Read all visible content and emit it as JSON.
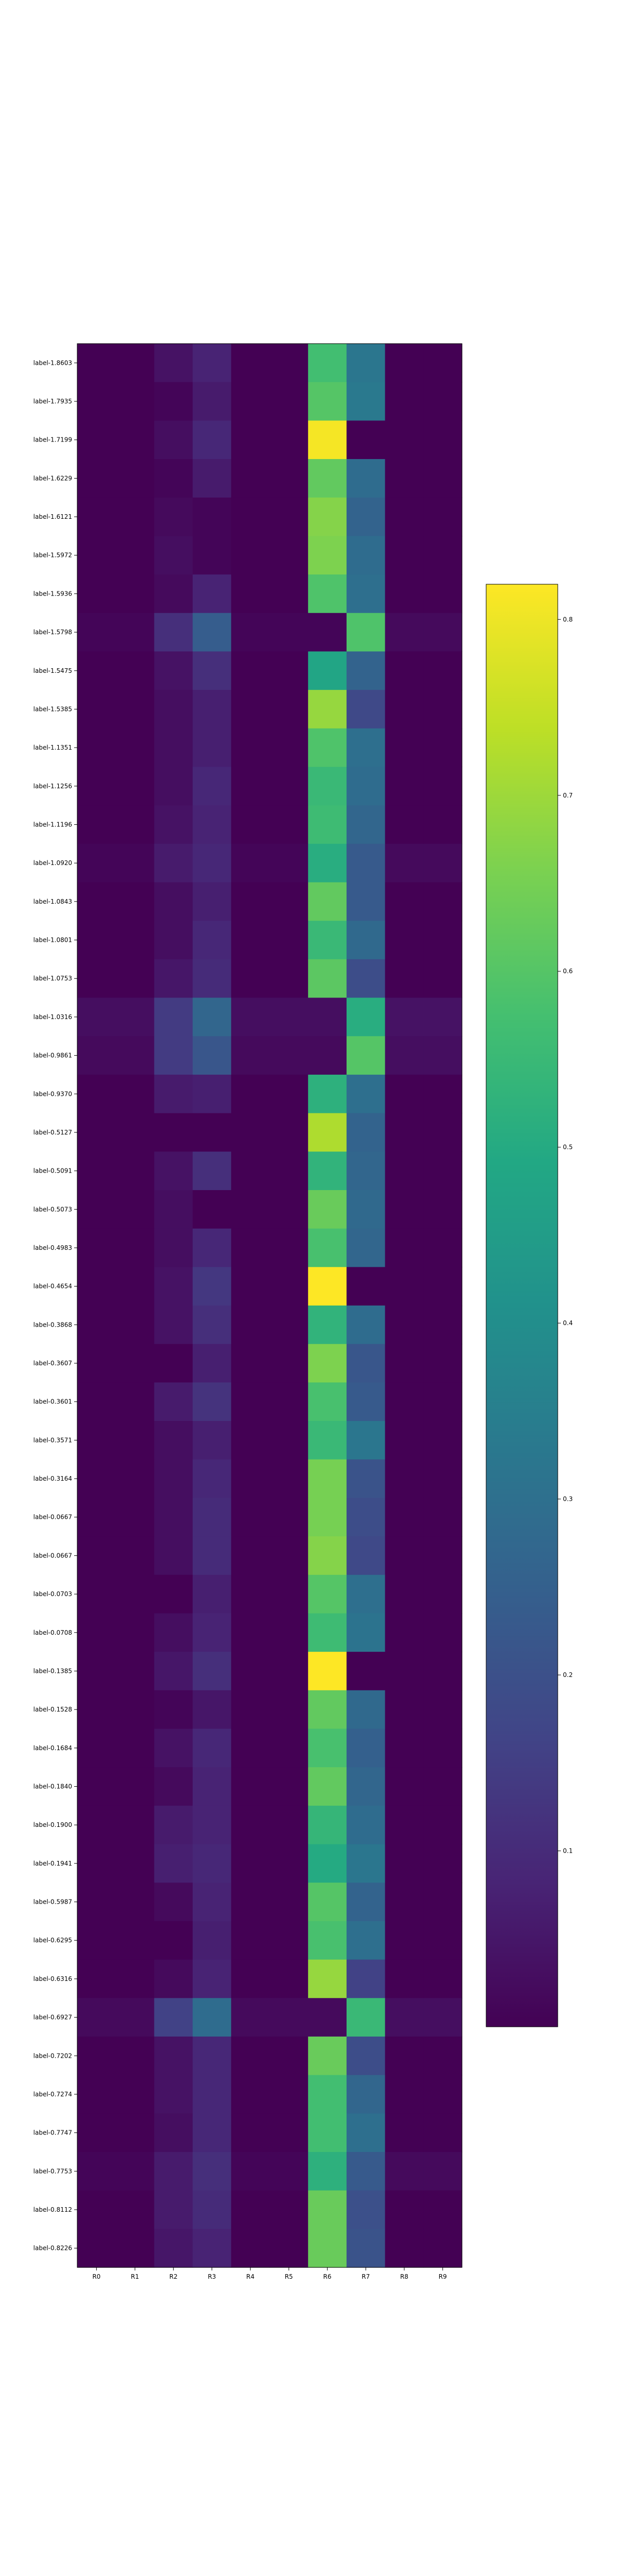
{
  "chart_data": {
    "type": "heatmap",
    "title": "",
    "xlabel": "",
    "ylabel": "",
    "colormap": "viridis",
    "x": [
      "R0",
      "R1",
      "R2",
      "R3",
      "R4",
      "R5",
      "R6",
      "R7",
      "R8",
      "R9"
    ],
    "y": [
      "label-1.8603",
      "label-1.7935",
      "label-1.7199",
      "label-1.6229",
      "label-1.6121",
      "label-1.5972",
      "label-1.5936",
      "label-1.5798",
      "label-1.5475",
      "label-1.5385",
      "label-1.1351",
      "label-1.1256",
      "label-1.1196",
      "label-1.0920",
      "label-1.0843",
      "label-1.0801",
      "label-1.0753",
      "label-1.0316",
      "label-0.9861",
      "label-0.9370",
      "label-0.5127",
      "label-0.5091",
      "label-0.5073",
      "label-0.4983",
      "label-0.4654",
      "label-0.3868",
      "label-0.3607",
      "label-0.3601",
      "label-0.3571",
      "label-0.3164",
      "label-0.0667",
      "label-0.0667",
      "label-0.0703",
      "label-0.0708",
      "label-0.1385",
      "label-0.1528",
      "label-0.1684",
      "label-0.1840",
      "label-0.1900",
      "label-0.1941",
      "label-0.5987",
      "label-0.6295",
      "label-0.6316",
      "label-0.6927",
      "label-0.7202",
      "label-0.7274",
      "label-0.7747",
      "label-0.7753",
      "label-0.8112",
      "label-0.8226"
    ],
    "values": [
      [
        0.0,
        0.0,
        0.04,
        0.08,
        0.0,
        0.0,
        0.57,
        0.32,
        0.0,
        0.0
      ],
      [
        0.0,
        0.0,
        0.01,
        0.06,
        0.0,
        0.0,
        0.6,
        0.33,
        0.0,
        0.0
      ],
      [
        0.0,
        0.0,
        0.03,
        0.09,
        0.0,
        0.0,
        0.81,
        0.0,
        0.0,
        0.0
      ],
      [
        0.0,
        0.0,
        0.01,
        0.06,
        0.0,
        0.0,
        0.62,
        0.29,
        0.0,
        0.0
      ],
      [
        0.0,
        0.0,
        0.02,
        0.01,
        0.0,
        0.0,
        0.67,
        0.26,
        0.0,
        0.0
      ],
      [
        0.0,
        0.0,
        0.03,
        0.01,
        0.0,
        0.0,
        0.66,
        0.29,
        0.0,
        0.0
      ],
      [
        0.0,
        0.0,
        0.02,
        0.08,
        0.0,
        0.0,
        0.59,
        0.3,
        0.0,
        0.0
      ],
      [
        0.01,
        0.01,
        0.11,
        0.24,
        0.01,
        0.01,
        0.01,
        0.59,
        0.02,
        0.02
      ],
      [
        0.0,
        0.0,
        0.04,
        0.11,
        0.0,
        0.0,
        0.48,
        0.26,
        0.0,
        0.0
      ],
      [
        0.0,
        0.0,
        0.03,
        0.07,
        0.0,
        0.0,
        0.69,
        0.18,
        0.0,
        0.0
      ],
      [
        0.0,
        0.0,
        0.03,
        0.07,
        0.0,
        0.0,
        0.59,
        0.3,
        0.0,
        0.0
      ],
      [
        0.0,
        0.0,
        0.03,
        0.09,
        0.0,
        0.0,
        0.55,
        0.29,
        0.0,
        0.0
      ],
      [
        0.0,
        0.0,
        0.04,
        0.08,
        0.0,
        0.0,
        0.56,
        0.27,
        0.0,
        0.0
      ],
      [
        0.01,
        0.01,
        0.06,
        0.09,
        0.01,
        0.01,
        0.51,
        0.23,
        0.02,
        0.02
      ],
      [
        0.0,
        0.0,
        0.03,
        0.07,
        0.0,
        0.0,
        0.62,
        0.23,
        0.0,
        0.0
      ],
      [
        0.0,
        0.0,
        0.03,
        0.09,
        0.0,
        0.0,
        0.55,
        0.28,
        0.0,
        0.0
      ],
      [
        0.0,
        0.0,
        0.05,
        0.1,
        0.0,
        0.0,
        0.61,
        0.19,
        0.0,
        0.0
      ],
      [
        0.03,
        0.03,
        0.14,
        0.27,
        0.03,
        0.03,
        0.03,
        0.51,
        0.04,
        0.04
      ],
      [
        0.02,
        0.02,
        0.14,
        0.22,
        0.02,
        0.02,
        0.02,
        0.6,
        0.03,
        0.03
      ],
      [
        0.0,
        0.0,
        0.06,
        0.07,
        0.0,
        0.0,
        0.52,
        0.3,
        0.0,
        0.0
      ],
      [
        0.0,
        0.0,
        0.0,
        0.0,
        0.0,
        0.0,
        0.72,
        0.26,
        0.0,
        0.0
      ],
      [
        0.0,
        0.0,
        0.04,
        0.11,
        0.0,
        0.0,
        0.53,
        0.27,
        0.0,
        0.0
      ],
      [
        0.0,
        0.0,
        0.03,
        0.0,
        0.0,
        0.0,
        0.63,
        0.28,
        0.0,
        0.0
      ],
      [
        0.0,
        0.0,
        0.03,
        0.09,
        0.0,
        0.0,
        0.58,
        0.27,
        0.0,
        0.0
      ],
      [
        0.0,
        0.0,
        0.04,
        0.13,
        0.0,
        0.0,
        0.82,
        0.0,
        0.0,
        0.0
      ],
      [
        0.0,
        0.0,
        0.04,
        0.11,
        0.0,
        0.0,
        0.53,
        0.29,
        0.0,
        0.0
      ],
      [
        0.0,
        0.0,
        0.0,
        0.07,
        0.0,
        0.0,
        0.66,
        0.22,
        0.0,
        0.0
      ],
      [
        0.0,
        0.0,
        0.06,
        0.12,
        0.0,
        0.0,
        0.58,
        0.23,
        0.0,
        0.0
      ],
      [
        0.0,
        0.0,
        0.03,
        0.07,
        0.0,
        0.0,
        0.55,
        0.32,
        0.0,
        0.0
      ],
      [
        0.0,
        0.0,
        0.03,
        0.09,
        0.0,
        0.0,
        0.65,
        0.21,
        0.0,
        0.0
      ],
      [
        0.0,
        0.0,
        0.03,
        0.1,
        0.0,
        0.0,
        0.65,
        0.19,
        0.0,
        0.0
      ],
      [
        0.0,
        0.0,
        0.03,
        0.1,
        0.0,
        0.0,
        0.67,
        0.18,
        0.0,
        0.0
      ],
      [
        0.0,
        0.0,
        0.0,
        0.07,
        0.0,
        0.0,
        0.6,
        0.3,
        0.0,
        0.0
      ],
      [
        0.0,
        0.0,
        0.03,
        0.08,
        0.0,
        0.0,
        0.56,
        0.31,
        0.0,
        0.0
      ],
      [
        0.0,
        0.0,
        0.05,
        0.11,
        0.0,
        0.0,
        0.82,
        0.0,
        0.0,
        0.0
      ],
      [
        0.0,
        0.0,
        0.01,
        0.05,
        0.0,
        0.0,
        0.62,
        0.28,
        0.0,
        0.0
      ],
      [
        0.0,
        0.0,
        0.04,
        0.09,
        0.0,
        0.0,
        0.58,
        0.25,
        0.0,
        0.0
      ],
      [
        0.0,
        0.0,
        0.02,
        0.08,
        0.0,
        0.0,
        0.62,
        0.27,
        0.0,
        0.0
      ],
      [
        0.0,
        0.0,
        0.06,
        0.08,
        0.0,
        0.0,
        0.54,
        0.29,
        0.0,
        0.0
      ],
      [
        0.0,
        0.0,
        0.07,
        0.09,
        0.0,
        0.0,
        0.5,
        0.32,
        0.0,
        0.0
      ],
      [
        0.0,
        0.0,
        0.02,
        0.08,
        0.0,
        0.0,
        0.6,
        0.26,
        0.0,
        0.0
      ],
      [
        0.0,
        0.0,
        0.0,
        0.07,
        0.0,
        0.0,
        0.58,
        0.3,
        0.0,
        0.0
      ],
      [
        0.0,
        0.0,
        0.02,
        0.08,
        0.0,
        0.0,
        0.69,
        0.16,
        0.0,
        0.0
      ],
      [
        0.02,
        0.02,
        0.16,
        0.29,
        0.02,
        0.02,
        0.02,
        0.55,
        0.03,
        0.03
      ],
      [
        0.0,
        0.0,
        0.04,
        0.09,
        0.0,
        0.0,
        0.63,
        0.19,
        0.0,
        0.0
      ],
      [
        0.0,
        0.0,
        0.04,
        0.09,
        0.0,
        0.0,
        0.57,
        0.27,
        0.0,
        0.0
      ],
      [
        0.0,
        0.0,
        0.03,
        0.09,
        0.0,
        0.0,
        0.57,
        0.3,
        0.0,
        0.0
      ],
      [
        0.01,
        0.01,
        0.06,
        0.11,
        0.01,
        0.01,
        0.52,
        0.23,
        0.02,
        0.02
      ],
      [
        0.0,
        0.0,
        0.06,
        0.1,
        0.0,
        0.0,
        0.63,
        0.2,
        0.0,
        0.0
      ],
      [
        0.0,
        0.0,
        0.05,
        0.08,
        0.0,
        0.0,
        0.63,
        0.21,
        0.0,
        0.0
      ]
    ],
    "colorbar": {
      "range": [
        0.0,
        0.82
      ],
      "ticks": [
        0.1,
        0.2,
        0.3,
        0.4,
        0.5,
        0.6,
        0.7,
        0.8
      ],
      "tick_labels": [
        "0.1",
        "0.2",
        "0.3",
        "0.4",
        "0.5",
        "0.6",
        "0.7",
        "0.8"
      ]
    },
    "grid": false
  }
}
